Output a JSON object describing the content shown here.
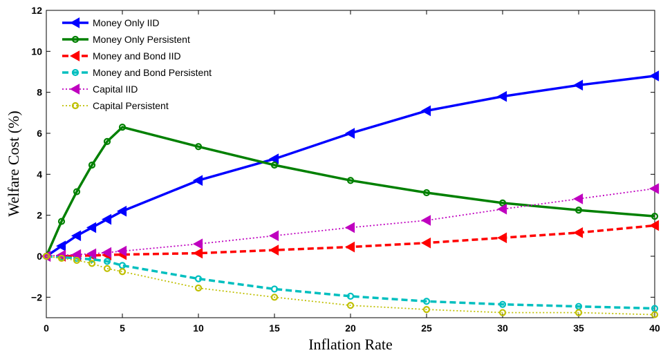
{
  "chart_data": {
    "type": "line",
    "title": "",
    "xlabel": "Inflation Rate",
    "ylabel": "Welfare Cost (%)",
    "xlim": [
      0,
      40
    ],
    "ylim": [
      -3,
      12
    ],
    "xticks": [
      0,
      5,
      10,
      15,
      20,
      25,
      30,
      35,
      40
    ],
    "yticks": [
      -2,
      0,
      2,
      4,
      6,
      8,
      10,
      12
    ],
    "ytick_labels": [
      "−2",
      "0",
      "2",
      "4",
      "6",
      "8",
      "10",
      "12"
    ],
    "grid": false,
    "legend_position": "top-left",
    "x": [
      0,
      1,
      2,
      3,
      4,
      5,
      10,
      15,
      20,
      25,
      30,
      35,
      40
    ],
    "series": [
      {
        "name": "Money Only IID",
        "color": "#0000ff",
        "line_style": "solid",
        "marker": "triangle-left",
        "values": [
          0,
          0.5,
          1.0,
          1.4,
          1.8,
          2.2,
          3.7,
          4.75,
          6.0,
          7.1,
          7.8,
          8.35,
          8.8
        ]
      },
      {
        "name": "Money Only Persistent",
        "color": "#008000",
        "line_style": "solid",
        "marker": "circle",
        "values": [
          0,
          1.7,
          3.15,
          4.45,
          5.6,
          6.3,
          5.35,
          4.45,
          3.7,
          3.1,
          2.6,
          2.25,
          1.95
        ]
      },
      {
        "name": "Money and Bond IID",
        "color": "#ff0000",
        "line_style": "dashed",
        "marker": "triangle-left",
        "values": [
          0,
          0.0,
          0.02,
          0.04,
          0.06,
          0.08,
          0.15,
          0.3,
          0.45,
          0.65,
          0.9,
          1.15,
          1.5
        ]
      },
      {
        "name": "Money and Bond Persistent",
        "color": "#00bfbf",
        "line_style": "dashed",
        "marker": "circle",
        "values": [
          0,
          -0.05,
          -0.1,
          -0.15,
          -0.25,
          -0.45,
          -1.1,
          -1.6,
          -1.95,
          -2.2,
          -2.35,
          -2.45,
          -2.55
        ]
      },
      {
        "name": "Capital IID",
        "color": "#bf00bf",
        "line_style": "dotted",
        "marker": "triangle-left",
        "values": [
          0,
          0.05,
          0.08,
          0.12,
          0.18,
          0.25,
          0.6,
          1.0,
          1.4,
          1.75,
          2.3,
          2.8,
          3.3
        ]
      },
      {
        "name": "Capital Persistent",
        "color": "#bfbf00",
        "line_style": "dotted",
        "marker": "circle",
        "values": [
          0,
          -0.1,
          -0.2,
          -0.35,
          -0.6,
          -0.75,
          -1.55,
          -2.0,
          -2.4,
          -2.6,
          -2.75,
          -2.75,
          -2.85
        ]
      }
    ]
  }
}
